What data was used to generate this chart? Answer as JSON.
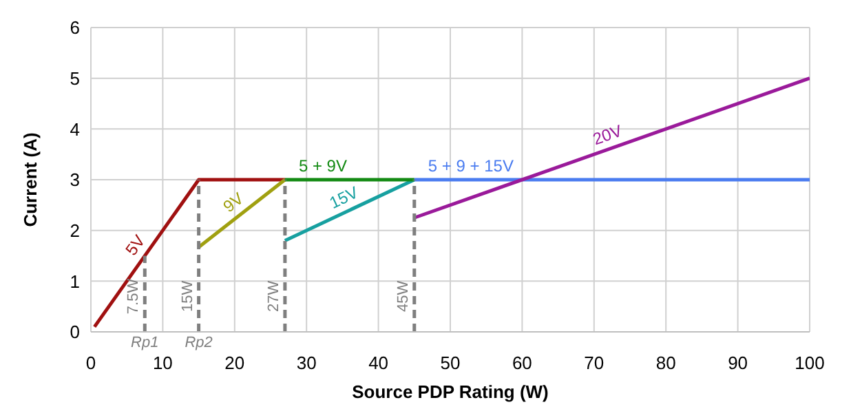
{
  "chart_data": {
    "type": "line",
    "xlabel": "Source PDP Rating (W)",
    "ylabel": "Current (A)",
    "xlim": [
      0,
      100
    ],
    "xticks": [
      0,
      10,
      20,
      30,
      40,
      50,
      60,
      70,
      80,
      90,
      100
    ],
    "ylim": [
      0,
      6
    ],
    "yticks": [
      0,
      1,
      2,
      3,
      4,
      5,
      6
    ],
    "grid": true,
    "series": [
      {
        "name": "5V",
        "color": "#a01010",
        "x": [
          0.5,
          15,
          27
        ],
        "values": [
          0.1,
          3,
          3
        ]
      },
      {
        "name": "9V",
        "color": "#a0a010",
        "x": [
          15,
          27
        ],
        "values": [
          1.67,
          3
        ]
      },
      {
        "name": "15V",
        "color": "#17a0a0",
        "x": [
          27,
          45
        ],
        "values": [
          1.8,
          3
        ]
      },
      {
        "name": "5 + 9V",
        "color": "#138a13",
        "x": [
          27,
          45
        ],
        "values": [
          3,
          3
        ]
      },
      {
        "name": "5 + 9 + 15V",
        "color": "#4a7cf0",
        "x": [
          45,
          100
        ],
        "values": [
          3,
          3
        ]
      },
      {
        "name": "20V",
        "color": "#9a1a9a",
        "x": [
          45,
          100
        ],
        "values": [
          2.25,
          5
        ]
      },
      {
        "color": "#7f7f7f",
        "line_style": "dashed",
        "x": [
          7.5,
          7.5
        ],
        "values": [
          0,
          1.5
        ]
      },
      {
        "color": "#7f7f7f",
        "line_style": "dashed",
        "x": [
          15,
          15
        ],
        "values": [
          0,
          3
        ]
      },
      {
        "color": "#7f7f7f",
        "line_style": "dashed",
        "x": [
          27,
          27
        ],
        "values": [
          0,
          3
        ]
      },
      {
        "color": "#7f7f7f",
        "line_style": "dashed",
        "x": [
          45,
          45
        ],
        "values": [
          0,
          3
        ]
      }
    ],
    "annotations": [
      {
        "text": "7.5W",
        "x": 7.5,
        "y": 0.7
      },
      {
        "text": "15W",
        "x": 15,
        "y": 0.7
      },
      {
        "text": "27W",
        "x": 27,
        "y": 0.7
      },
      {
        "text": "45W",
        "x": 45,
        "y": 0.7
      },
      {
        "text": "Rp1",
        "x": 7.5,
        "y": 0
      },
      {
        "text": "Rp2",
        "x": 15,
        "y": 0
      }
    ]
  }
}
